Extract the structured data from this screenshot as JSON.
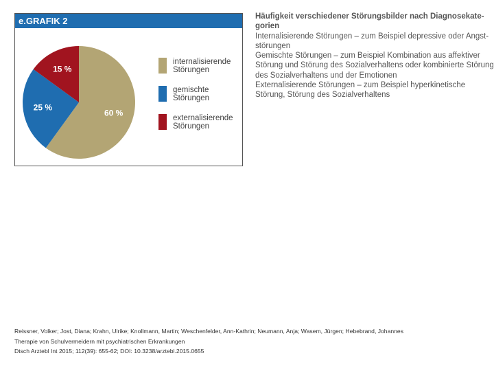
{
  "chart_data": {
    "type": "pie",
    "title": "e.GRAFIK 2",
    "categories": [
      "internalisierende Störungen",
      "gemischte Störungen",
      "externalisierende Störungen"
    ],
    "values": [
      60,
      25,
      15
    ],
    "value_labels": [
      "60 %",
      "25 %",
      "15 %"
    ],
    "colors": [
      "#b3a574",
      "#1f6db0",
      "#a1141f"
    ]
  },
  "description": {
    "title_lines": [
      "Häufigkeit verschiedener Störungsbilder nach Diagnosekate-",
      "gorien"
    ],
    "lines": [
      "Internalisierende Störungen – zum Beispiel depressive oder Angst-",
      "störungen",
      "Gemischte Störungen – zum Beispiel Kombination aus affektiver",
      "Störung und Störung des Sozialverhaltens oder kombinierte Störung",
      "des Sozialverhaltens und der Emotionen",
      "Externalisierende Störungen – zum Beispiel hyperkinetische",
      "Störung, Störung des Sozialverhaltens"
    ]
  },
  "citation": {
    "lines": [
      "Reissner, Volker; Jost, Diana; Krahn, Ulrike; Knollmann, Martin; Weschenfelder, Ann-Kathrin; Neumann, Anja; Wasem, Jürgen; Hebebrand, Johannes",
      "Therapie von Schulvermeidern mit psychiatrischen Erkrankungen",
      "Dtsch Arztebl Int 2015; 112(39): 655-62; DOI: 10.3238/arztebl.2015.0655"
    ]
  }
}
